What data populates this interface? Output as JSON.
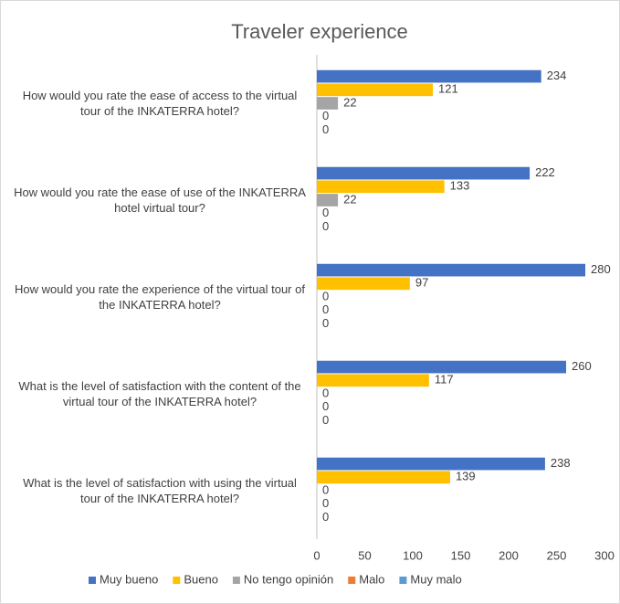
{
  "chart_data": {
    "type": "hbar",
    "title": "Traveler experience",
    "categories": [
      "How would you rate the ease of access to the virtual tour of the INKATERRA hotel?",
      "How would you rate the ease of use of the INKATERRA hotel virtual tour?",
      "How would you rate the experience of the virtual tour of the INKATERRA hotel?",
      "What is the level of satisfaction with the content of the virtual tour of the INKATERRA hotel?",
      "What is the level of satisfaction with using the virtual tour of the INKATERRA hotel?"
    ],
    "series": [
      {
        "name": "Muy bueno",
        "color": "#4472c4",
        "values": [
          234,
          222,
          280,
          260,
          238
        ]
      },
      {
        "name": "Bueno",
        "color": "#ffc000",
        "values": [
          121,
          133,
          97,
          117,
          139
        ]
      },
      {
        "name": "No tengo opinión",
        "color": "#a5a5a5",
        "values": [
          22,
          22,
          0,
          0,
          0
        ]
      },
      {
        "name": "Malo",
        "color": "#ed7d31",
        "values": [
          0,
          0,
          0,
          0,
          0
        ]
      },
      {
        "name": "Muy malo",
        "color": "#5b9bd5",
        "values": [
          0,
          0,
          0,
          0,
          0
        ]
      }
    ],
    "xlim": [
      0,
      300
    ],
    "xticks": [
      0,
      50,
      100,
      150,
      200,
      250,
      300
    ],
    "grid": false,
    "legend": "bottom"
  }
}
